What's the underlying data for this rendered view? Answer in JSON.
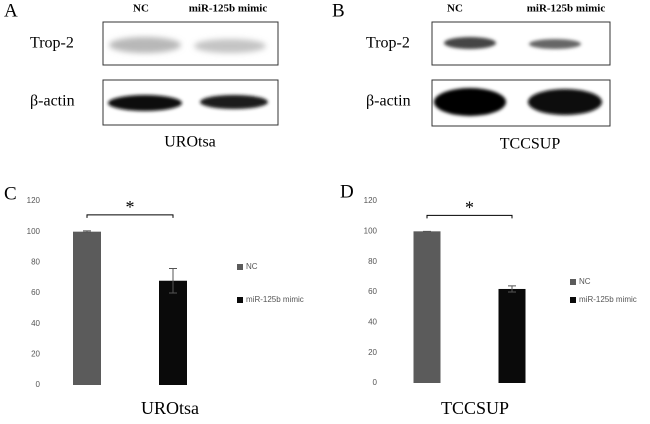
{
  "blots": [
    {
      "label": "A",
      "columns": [
        "NC",
        "miR-125b mimic"
      ],
      "rows": [
        "Trop-2",
        "β-actin"
      ],
      "cell_line": "UROtsa"
    },
    {
      "label": "B",
      "columns": [
        "NC",
        "miR-125b mimic"
      ],
      "rows": [
        "Trop-2",
        "β-actin"
      ],
      "cell_line": "TCCSUP"
    }
  ],
  "chart_data": [
    {
      "type": "bar",
      "panel_label": "C",
      "xlabel": "UROtsa",
      "annotation": "*",
      "ylim": [
        0,
        120
      ],
      "yticks": [
        0,
        20,
        40,
        60,
        80,
        100,
        120
      ],
      "series": [
        {
          "name": "NC",
          "color": "#5b5b5b",
          "values": [
            100
          ],
          "errors": [
            0.5
          ]
        },
        {
          "name": "miR-125b mimic",
          "color": "#0a0a0a",
          "values": [
            68
          ],
          "errors": [
            8
          ]
        }
      ]
    },
    {
      "type": "bar",
      "panel_label": "D",
      "xlabel": "TCCSUP",
      "annotation": "*",
      "ylim": [
        0,
        120
      ],
      "yticks": [
        0,
        20,
        40,
        60,
        80,
        100,
        120
      ],
      "series": [
        {
          "name": "NC",
          "color": "#5b5b5b",
          "values": [
            100
          ],
          "errors": [
            0
          ]
        },
        {
          "name": "miR-125b mimic",
          "color": "#0a0a0a",
          "values": [
            62
          ],
          "errors": [
            2
          ]
        }
      ]
    }
  ]
}
